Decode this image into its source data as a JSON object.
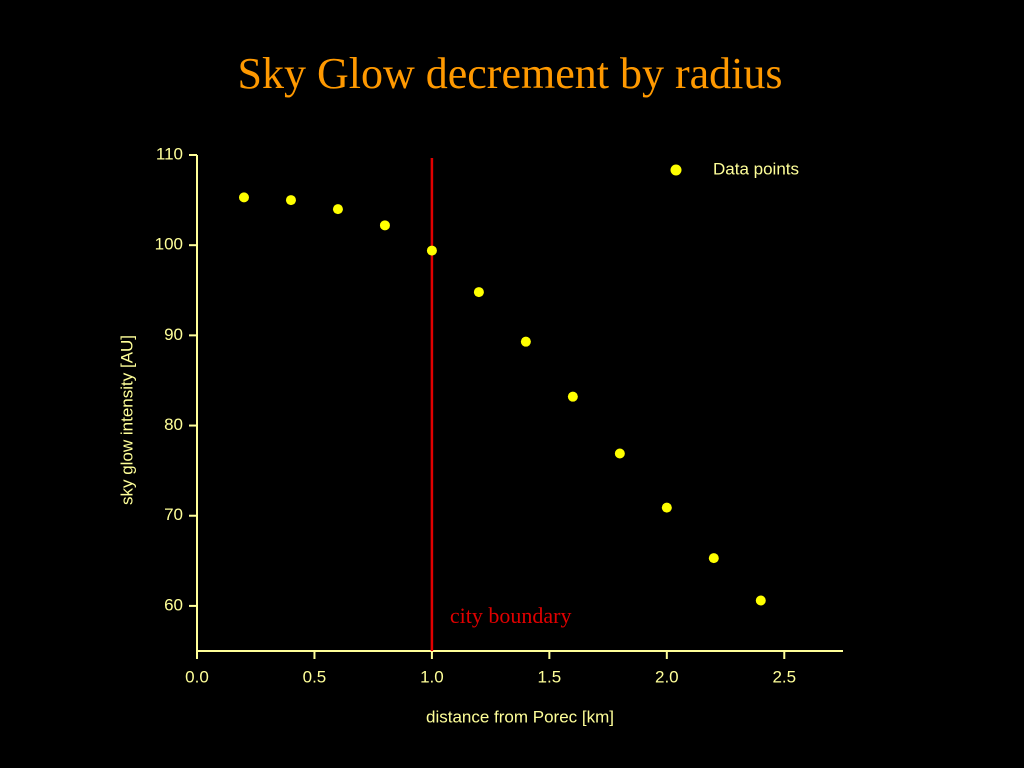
{
  "chart_data": {
    "type": "scatter",
    "title": "Sky Glow decrement by radius",
    "xlabel": "distance from Porec [km]",
    "ylabel": "sky glow intensity [AU]",
    "series": [
      {
        "name": "Data points",
        "color": "#ffff00",
        "x": [
          0.2,
          0.4,
          0.6,
          0.8,
          1.0,
          1.2,
          1.4,
          1.6,
          1.8,
          2.0,
          2.2,
          2.4
        ],
        "values": [
          105.3,
          105.0,
          104.0,
          102.2,
          99.4,
          94.8,
          89.3,
          83.2,
          76.9,
          70.9,
          65.3,
          60.6
        ]
      }
    ],
    "xlim": [
      0,
      2.75
    ],
    "xticks": [
      {
        "value": 0,
        "label": "0.0"
      },
      0.5,
      {
        "value": 1,
        "label": "1.0"
      },
      1.5,
      {
        "value": 2,
        "label": "2.0"
      },
      2.5
    ],
    "ylim": [
      55,
      110
    ],
    "yticks": [
      60,
      70,
      80,
      90,
      100,
      110
    ],
    "legend": "upper right",
    "annotations": [
      {
        "text": "city boundary",
        "x": 1,
        "color": "#e00000"
      }
    ]
  }
}
